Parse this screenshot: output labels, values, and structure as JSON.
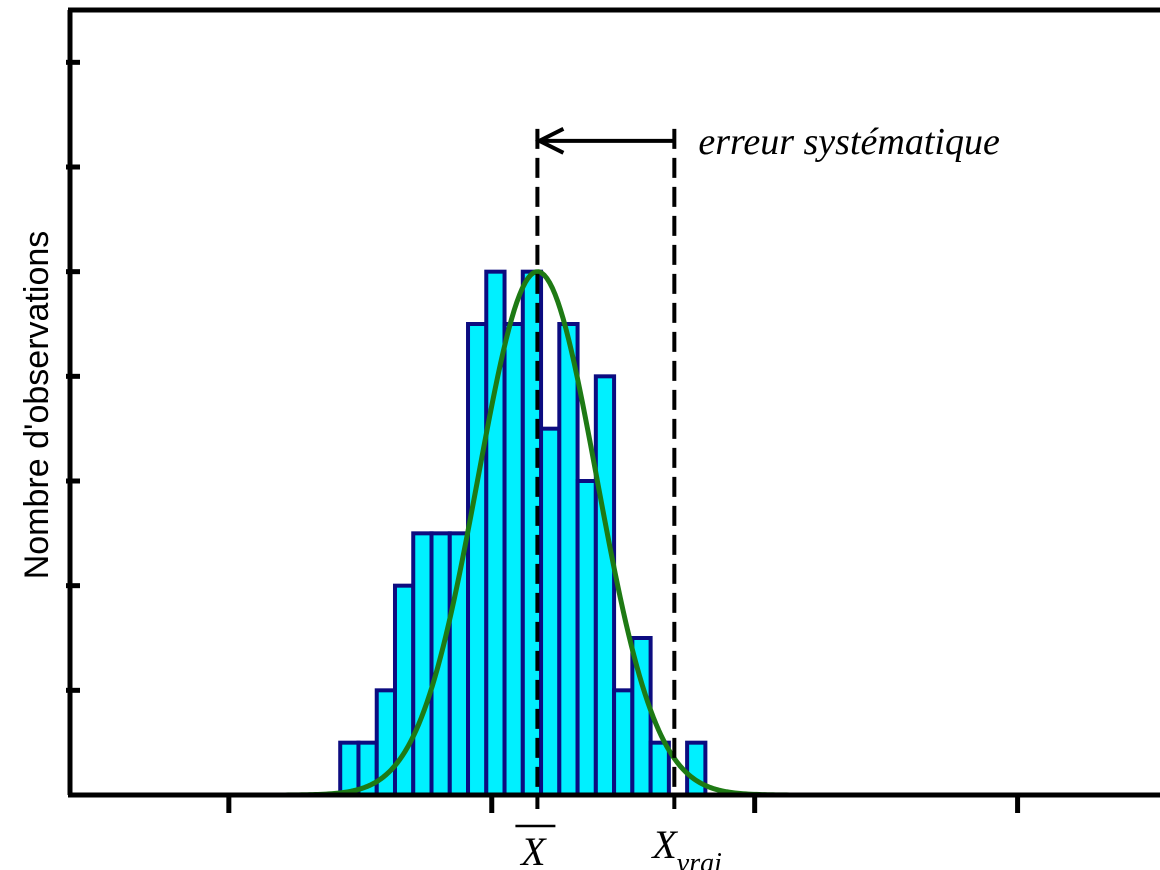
{
  "chart_data": {
    "type": "bar",
    "title": "",
    "xlabel": "",
    "ylabel": "Nombre d'observations",
    "bins": {
      "start": -3.1,
      "width": 0.2,
      "counts": [
        1,
        1,
        2,
        4,
        5,
        5,
        5,
        9,
        10,
        9,
        10,
        7,
        9,
        6,
        8,
        2,
        3,
        1,
        0,
        1
      ]
    },
    "ylim": [
      0,
      15
    ],
    "xlim": [
      -6.06,
      5.88
    ],
    "x_ticks": [
      -4.32,
      -1.44,
      1.44,
      4.32
    ],
    "y_ticks": [
      0,
      2,
      4,
      6,
      8,
      10,
      12,
      14
    ],
    "grid": false,
    "fit_curve": {
      "type": "gaussian",
      "mean": -0.94,
      "sigma": 0.65,
      "peak": 10,
      "color": "#1e7a14"
    },
    "reference_lines": [
      {
        "name": "mean",
        "x": -0.94,
        "label": "X",
        "subscript": ""
      },
      {
        "name": "true",
        "x": 0.56,
        "label": "X",
        "subscript": "vrai"
      }
    ],
    "annotation": {
      "text": "erreur systématique",
      "from_x": 0.56,
      "to_x": -0.94,
      "y": 12.5
    },
    "colors": {
      "bar_fill": "#00f0ff",
      "bar_edge": "#0c0c80",
      "axis": "#000000",
      "dashed": "#000000"
    }
  }
}
